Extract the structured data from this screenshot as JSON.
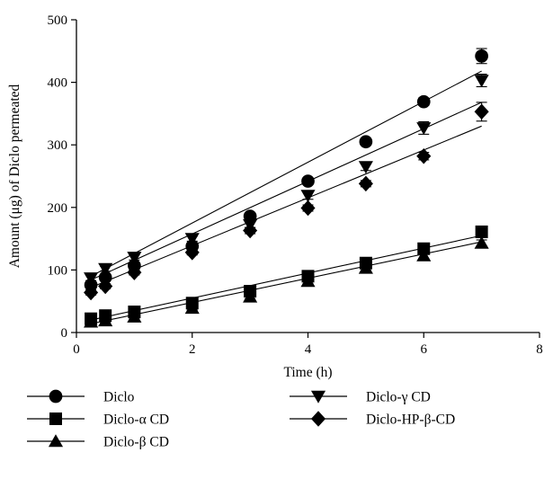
{
  "chart_data": {
    "type": "scatter",
    "xlabel": "Time (h)",
    "ylabel": "Amount (μg) of Diclo permeated",
    "xlim": [
      0,
      8
    ],
    "ylim": [
      0,
      500
    ],
    "xticks": [
      0,
      2,
      4,
      6,
      8
    ],
    "yticks": [
      0,
      100,
      200,
      300,
      400,
      500
    ],
    "grid": false,
    "legend_position": "bottom",
    "series": [
      {
        "name": "Diclo",
        "marker": "circle",
        "x": [
          0.25,
          0.5,
          1,
          2,
          3,
          4,
          5,
          6,
          7
        ],
        "values": [
          76,
          88,
          107,
          138,
          186,
          242,
          305,
          369,
          442
        ],
        "error": [
          4,
          4,
          4,
          4,
          5,
          5,
          5,
          6,
          12
        ],
        "fit": [
          [
            0.25,
            90
          ],
          [
            7,
            418
          ]
        ]
      },
      {
        "name": "Diclo-α CD",
        "marker": "square",
        "x": [
          0.25,
          0.5,
          1,
          2,
          3,
          4,
          5,
          6,
          7
        ],
        "values": [
          22,
          27,
          33,
          47,
          66,
          90,
          111,
          134,
          161
        ],
        "error": [
          3,
          3,
          3,
          3,
          3,
          4,
          4,
          5,
          6
        ],
        "fit": [
          [
            0.25,
            20
          ],
          [
            7,
            155
          ]
        ]
      },
      {
        "name": "Diclo-β CD",
        "marker": "triangle-up",
        "x": [
          0.25,
          0.5,
          1,
          2,
          3,
          4,
          5,
          6,
          7
        ],
        "values": [
          17,
          19,
          25,
          39,
          57,
          82,
          103,
          123,
          143
        ],
        "error": [
          3,
          3,
          3,
          3,
          3,
          4,
          4,
          5,
          5
        ],
        "fit": [
          [
            0.25,
            14
          ],
          [
            7,
            145
          ]
        ]
      },
      {
        "name": "Diclo-γ CD",
        "marker": "triangle-down",
        "x": [
          0.25,
          0.5,
          1,
          2,
          3,
          4,
          5,
          6,
          7
        ],
        "values": [
          87,
          102,
          120,
          150,
          172,
          219,
          265,
          327,
          403
        ],
        "error": [
          4,
          4,
          4,
          4,
          5,
          6,
          6,
          10,
          10
        ],
        "fit": [
          [
            0.25,
            84
          ],
          [
            7,
            368
          ]
        ]
      },
      {
        "name": "Diclo-HP-β-CD",
        "marker": "diamond",
        "x": [
          0.25,
          0.5,
          1,
          2,
          3,
          4,
          5,
          6,
          7
        ],
        "values": [
          64,
          74,
          96,
          128,
          163,
          199,
          238,
          282,
          353
        ],
        "error": [
          4,
          4,
          4,
          4,
          5,
          5,
          5,
          6,
          15
        ],
        "fit": [
          [
            0.25,
            72
          ],
          [
            7,
            330
          ]
        ]
      }
    ]
  },
  "legend_layout": [
    [
      "Diclo",
      "Diclo-γ CD"
    ],
    [
      "Diclo-α CD",
      "Diclo-HP-β-CD"
    ],
    [
      "Diclo-β CD"
    ]
  ]
}
